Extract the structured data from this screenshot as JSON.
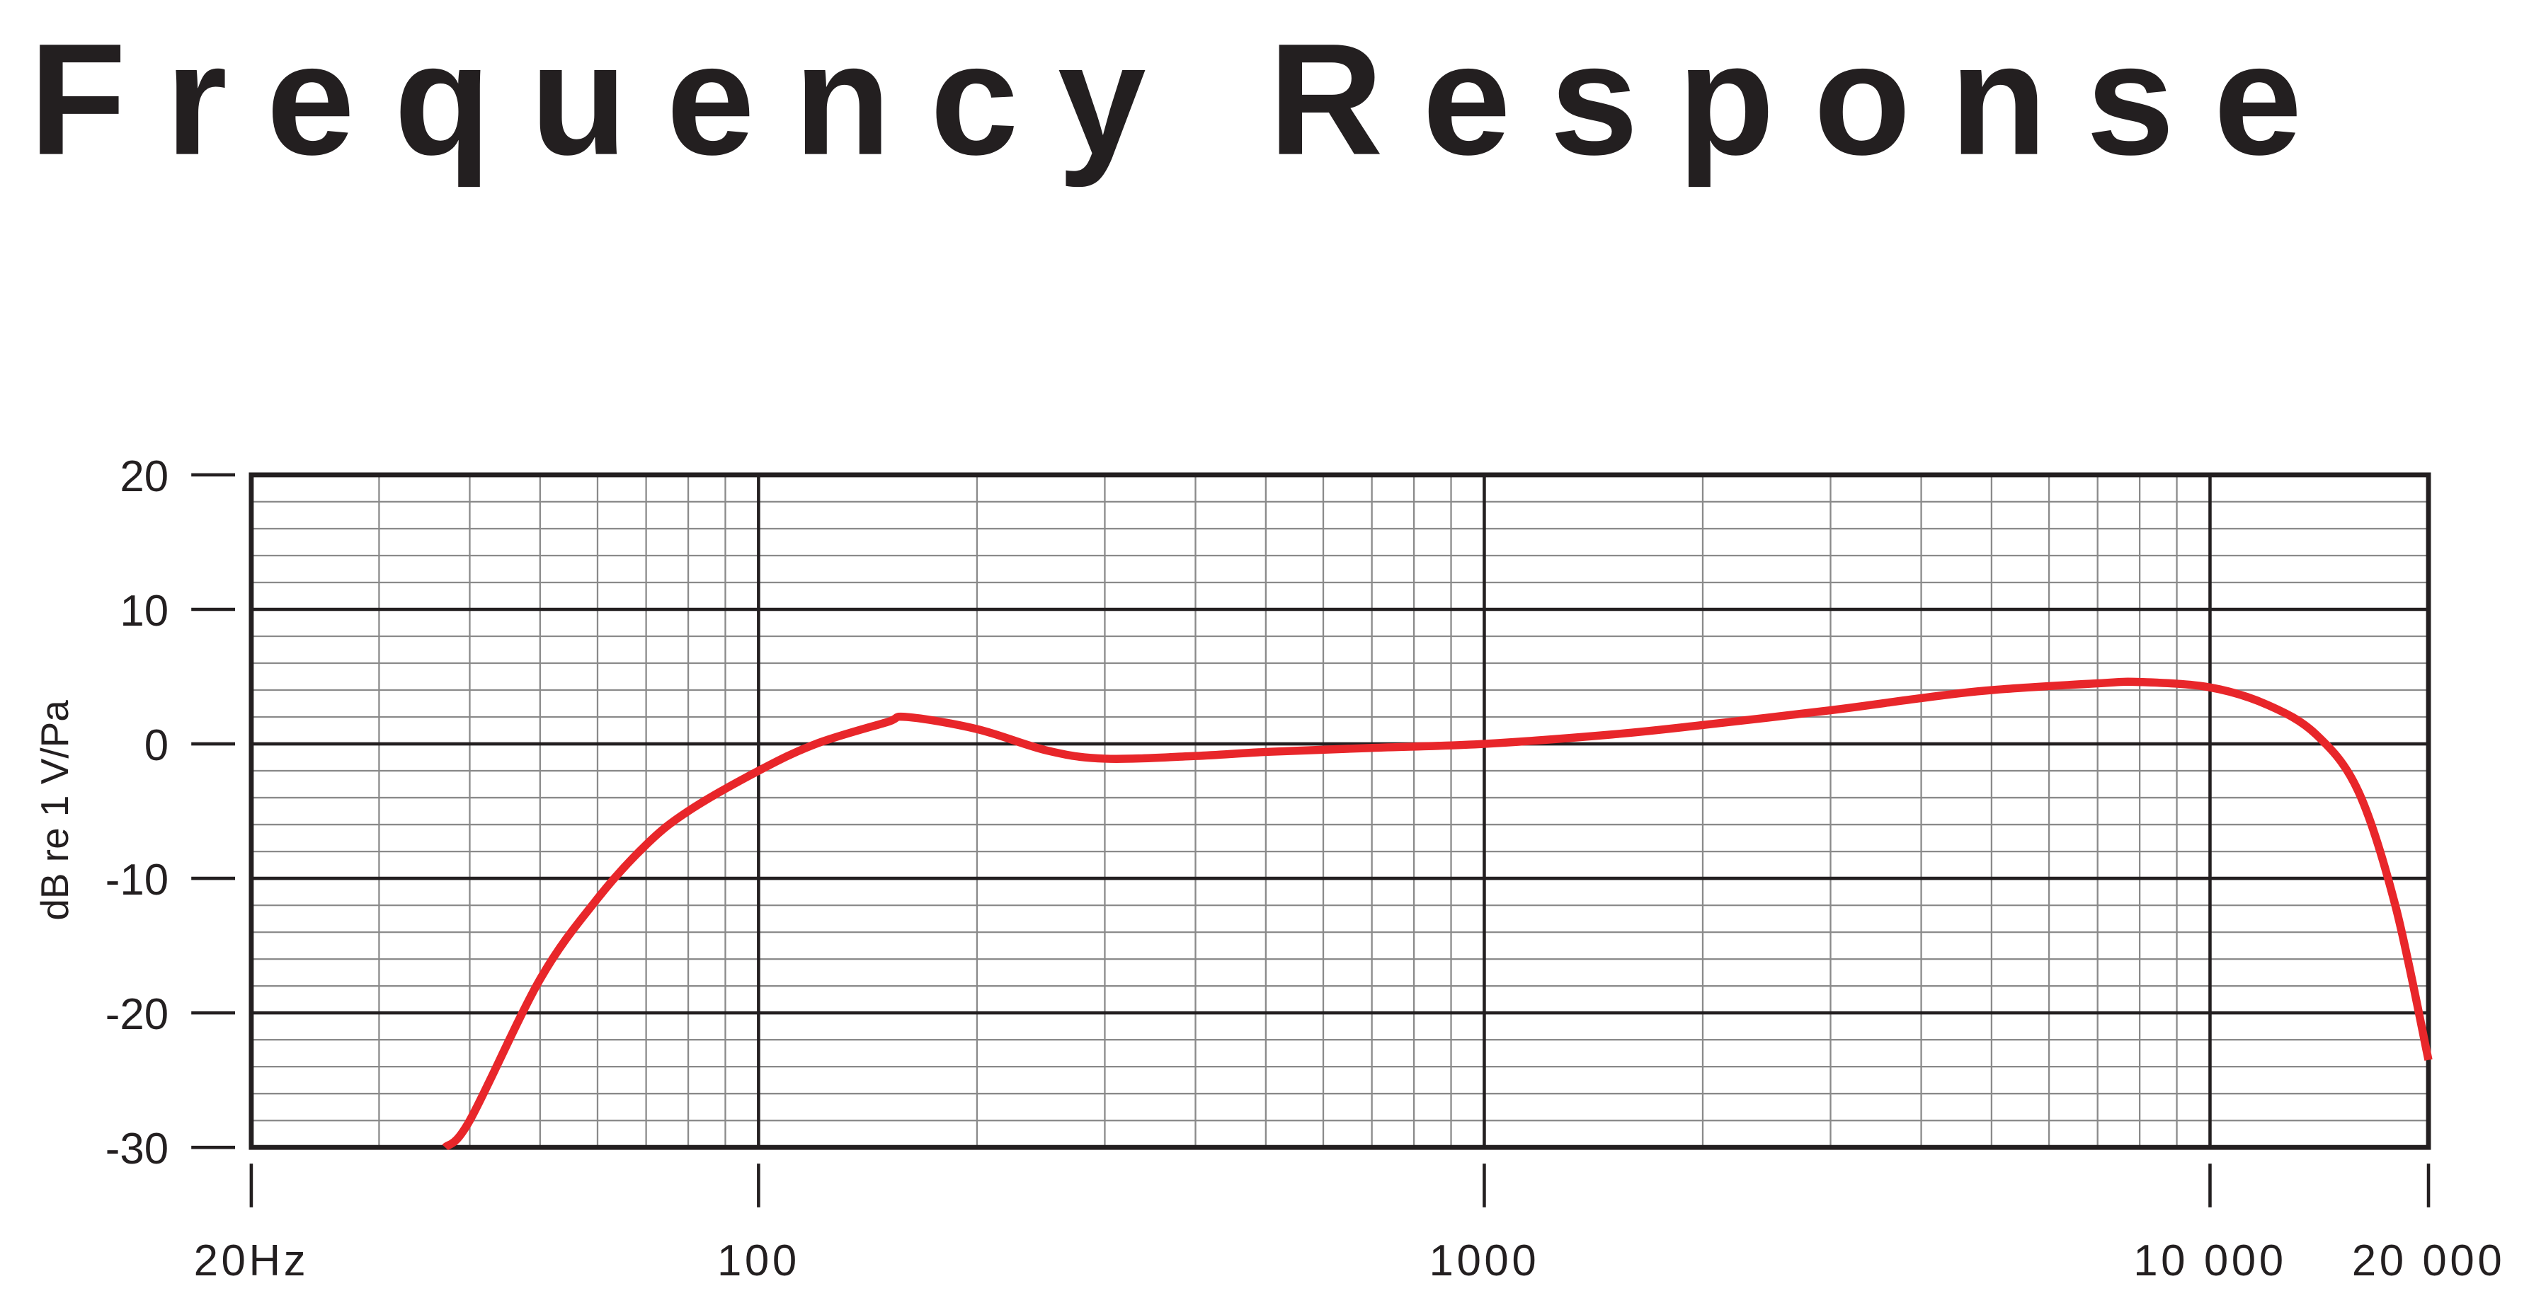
{
  "chart_data": {
    "type": "line",
    "title": "Frequency Response",
    "y_label": "dB re 1 V/Pa",
    "x_scale": "log",
    "grid": true,
    "x": [
      37,
      40,
      50,
      60,
      70,
      80,
      100,
      120,
      150,
      160,
      200,
      250,
      300,
      400,
      500,
      700,
      1000,
      1500,
      2000,
      3000,
      4000,
      5000,
      7000,
      8000,
      10000,
      12000,
      14000,
      16000,
      18000,
      20000
    ],
    "series": [
      {
        "name": "Frequency response",
        "color": "#e8262a",
        "values": [
          -30,
          -28,
          -17.5,
          -11.5,
          -7.5,
          -5,
          -2,
          0,
          1.6,
          2,
          1.1,
          -0.5,
          -1.1,
          -0.9,
          -0.6,
          -0.3,
          0,
          0.7,
          1.4,
          2.5,
          3.4,
          4,
          4.5,
          4.6,
          4.2,
          2.9,
          0.7,
          -3.5,
          -12,
          -23.5
        ]
      }
    ],
    "xlim": [
      20,
      20000
    ],
    "ylim": [
      -30,
      20
    ],
    "xticks": [
      {
        "value": 20,
        "label": "20Hz"
      },
      100,
      1000,
      {
        "value": 10000,
        "label": "10 000"
      },
      {
        "value": 20000,
        "label": "20 000"
      }
    ],
    "yticks": [
      -30,
      -20,
      -10,
      0,
      10,
      20
    ],
    "x_minor_grid": [
      30,
      40,
      50,
      60,
      70,
      80,
      90,
      200,
      300,
      400,
      500,
      600,
      700,
      800,
      900,
      2000,
      3000,
      4000,
      5000,
      6000,
      7000,
      8000,
      9000
    ],
    "y_minor_grid": [
      -28,
      -26,
      -24,
      -22,
      -18,
      -16,
      -14,
      -12,
      -8,
      -6,
      -4,
      -2,
      2,
      4,
      6,
      8,
      12,
      14,
      16,
      18
    ]
  }
}
